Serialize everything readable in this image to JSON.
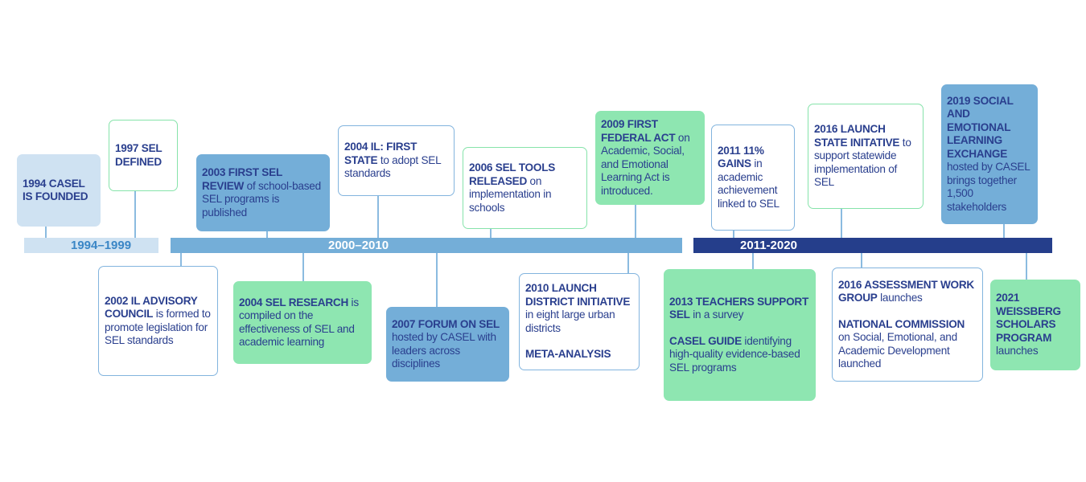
{
  "colors": {
    "text": "#2a3f8e",
    "light_blue": "#cfe2f2",
    "mid_blue": "#74aed8",
    "dark_blue": "#253e8b",
    "green": "#8ee6b1"
  },
  "periods": [
    {
      "label": "1994–1999"
    },
    {
      "label": "2000–2010"
    },
    {
      "label": "2011-2020"
    }
  ],
  "events": [
    {
      "id": "1994-casel-founded",
      "paras": [
        [
          {
            "b": "1994 CASEL IS FOUNDED"
          }
        ]
      ]
    },
    {
      "id": "1997-sel-defined",
      "paras": [
        [
          {
            "b": "1997 SEL DEFINED"
          }
        ]
      ]
    },
    {
      "id": "2003-first-sel-review",
      "paras": [
        [
          {
            "b": "2003 FIRST SEL REVIEW"
          },
          {
            "t": " of school-based SEL programs is published"
          }
        ]
      ]
    },
    {
      "id": "2004-il-first-state",
      "paras": [
        [
          {
            "b": "2004 IL: FIRST STATE"
          },
          {
            "t": " to adopt SEL standards"
          }
        ]
      ]
    },
    {
      "id": "2006-sel-tools",
      "paras": [
        [
          {
            "b": "2006 SEL TOOLS RELEASED"
          },
          {
            "t": " on implementation in schools"
          }
        ]
      ]
    },
    {
      "id": "2009-first-federal-act",
      "paras": [
        [
          {
            "b": "2009 FIRST FEDERAL ACT"
          },
          {
            "t": " on Academic, Social, and Emotional Learning Act is introduced."
          }
        ]
      ]
    },
    {
      "id": "2011-gains",
      "paras": [
        [
          {
            "b": "2011 11% GAINS"
          },
          {
            "t": " in academic achievement linked to SEL"
          }
        ]
      ]
    },
    {
      "id": "2016-state-initiative",
      "paras": [
        [
          {
            "b": "2016 LAUNCH STATE INITATIVE"
          },
          {
            "t": " to support statewide implementation of SEL"
          }
        ]
      ]
    },
    {
      "id": "2019-sel-exchange",
      "paras": [
        [
          {
            "b": "2019 SOCIAL AND EMOTIONAL LEARNING EXCHANGE"
          },
          {
            "t": " hosted by CASEL brings together 1,500 stakeholders"
          }
        ]
      ]
    },
    {
      "id": "2002-il-advisory-council",
      "paras": [
        [
          {
            "b": "2002 IL ADVISORY COUNCIL"
          },
          {
            "t": " is formed to promote legislation for SEL standards"
          }
        ]
      ]
    },
    {
      "id": "2004-sel-research",
      "paras": [
        [
          {
            "b": "2004 SEL RESEARCH"
          },
          {
            "t": " is compiled on the effectiveness of SEL and academic learning"
          }
        ]
      ]
    },
    {
      "id": "2007-forum-on-sel",
      "paras": [
        [
          {
            "b": "2007 FORUM ON SEL"
          },
          {
            "t": " hosted by CASEL with leaders across disciplines"
          }
        ]
      ]
    },
    {
      "id": "2010-district-initiative",
      "paras": [
        [
          {
            "b": "2010 LAUNCH DISTRICT INITIATIVE"
          },
          {
            "t": " in eight large urban districts"
          }
        ],
        [
          {
            "b": "META-ANALYSIS"
          }
        ]
      ]
    },
    {
      "id": "2013-teachers-support-sel",
      "paras": [
        [
          {
            "b": "2013 TEACHERS SUPPORT SEL"
          },
          {
            "t": " in a survey"
          }
        ],
        [
          {
            "b": "CASEL GUIDE"
          },
          {
            "t": " identifying high-quality evidence-based SEL programs"
          }
        ]
      ]
    },
    {
      "id": "2016-assessment-work-group",
      "paras": [
        [
          {
            "b": "2016 ASSESSMENT WORK GROUP"
          },
          {
            "t": " launches"
          }
        ],
        [
          {
            "b": "NATIONAL COMMISSION"
          },
          {
            "t": " on Social, Emotional, and Academic Development launched"
          }
        ]
      ]
    },
    {
      "id": "2021-weissberg-scholars",
      "paras": [
        [
          {
            "b": "2021 WEISSBERG SCHOLARS PROGRAM"
          },
          {
            "t": " launches"
          }
        ]
      ]
    }
  ]
}
